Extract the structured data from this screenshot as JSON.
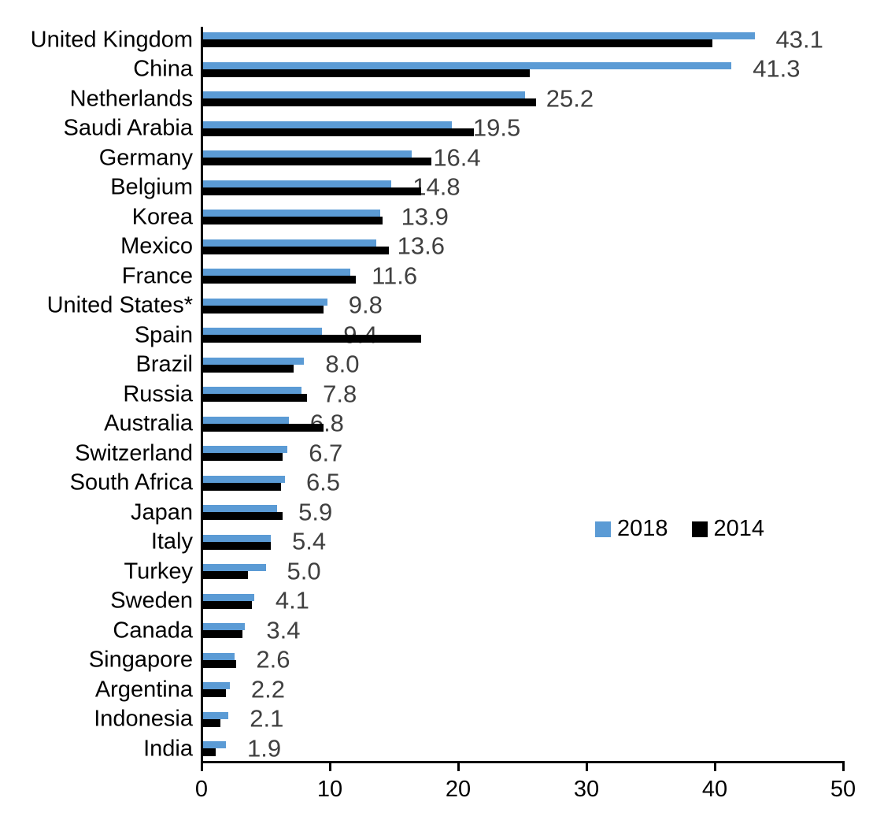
{
  "chart_data": {
    "type": "bar",
    "orientation": "horizontal",
    "title": "",
    "xlabel": "",
    "ylabel": "",
    "xlim": [
      0,
      50
    ],
    "x_ticks": [
      "0",
      "10",
      "20",
      "30",
      "40",
      "50"
    ],
    "grid": false,
    "legend_position": "center-right",
    "categories": [
      "United Kingdom",
      "China",
      "Netherlands",
      "Saudi Arabia",
      "Germany",
      "Belgium",
      "Korea",
      "Mexico",
      "France",
      "United States*",
      "Spain",
      "Brazil",
      "Russia",
      "Australia",
      "Switzerland",
      "South Africa",
      "Japan",
      "Italy",
      "Turkey",
      "Sweden",
      "Canada",
      "Singapore",
      "Argentina",
      "Indonesia",
      "India"
    ],
    "series": [
      {
        "name": "2018",
        "color": "#5B9BD5",
        "values": [
          43.1,
          41.3,
          25.2,
          19.5,
          16.4,
          14.8,
          13.9,
          13.6,
          11.6,
          9.8,
          9.4,
          8.0,
          7.8,
          6.8,
          6.7,
          6.5,
          5.9,
          5.4,
          5.0,
          4.1,
          3.4,
          2.6,
          2.2,
          2.1,
          1.9
        ]
      },
      {
        "name": "2014",
        "color": "#000000",
        "values": [
          39.8,
          25.6,
          26.1,
          21.2,
          17.9,
          17.1,
          14.1,
          14.6,
          12.0,
          9.5,
          17.1,
          7.2,
          8.2,
          9.5,
          6.3,
          6.2,
          6.3,
          5.4,
          3.6,
          3.9,
          3.2,
          2.7,
          1.9,
          1.5,
          1.1
        ]
      }
    ],
    "data_labels": [
      "43.1",
      "41.3",
      "25.2",
      "19.5",
      "16.4",
      "14.8",
      "13.9",
      "13.6",
      "11.6",
      "9.8",
      "9.4",
      "8.0",
      "7.8",
      "6.8",
      "6.7",
      "6.5",
      "5.9",
      "5.4",
      "5.0",
      "4.1",
      "3.4",
      "2.6",
      "2.2",
      "2.1",
      "1.9"
    ],
    "data_label_series": "2018"
  },
  "colors": {
    "series_2018": "#5B9BD5",
    "series_2014": "#000000",
    "data_label_text": "#404040",
    "axis": "#000000",
    "background": "#ffffff"
  }
}
